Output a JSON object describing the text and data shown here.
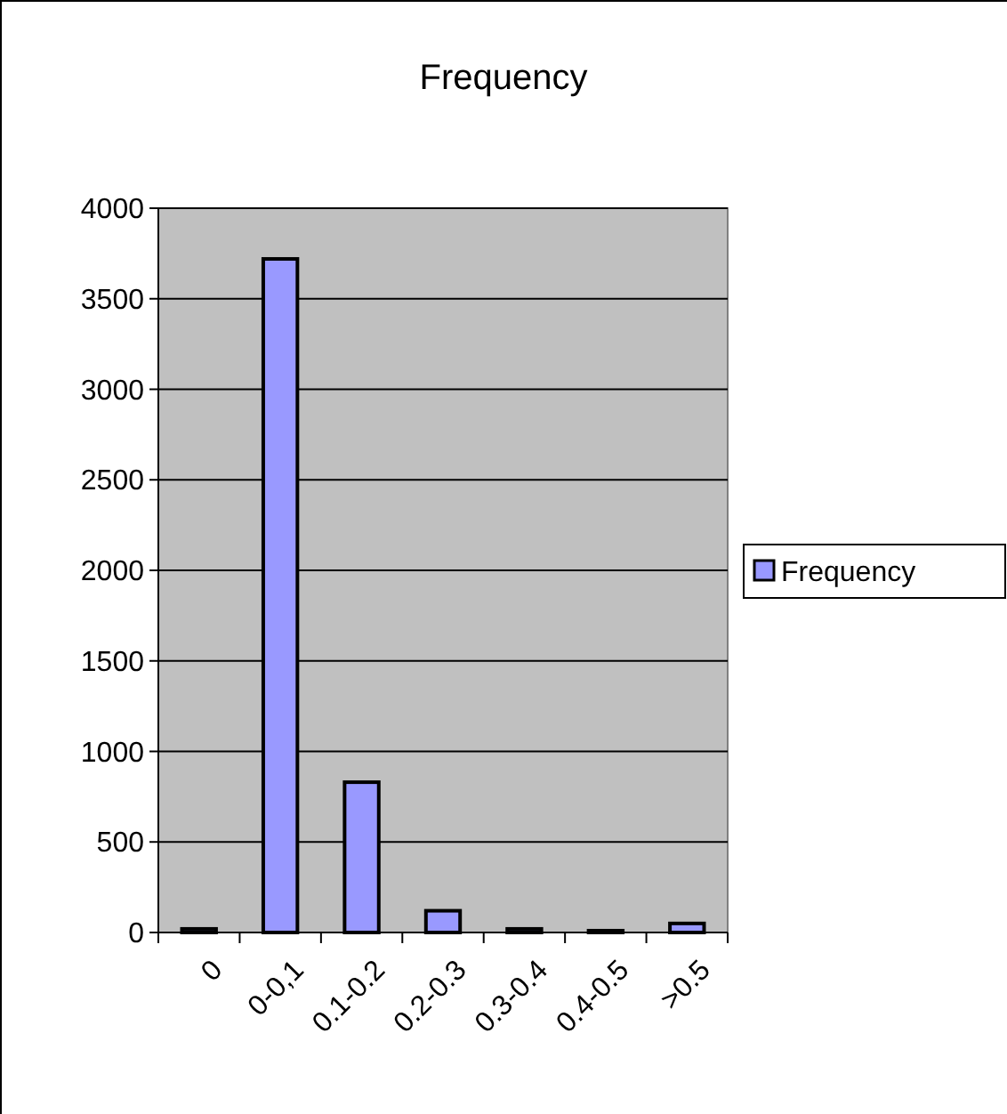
{
  "chart_data": {
    "type": "bar",
    "title": "Frequency",
    "categories": [
      "0",
      "0-0,1",
      "0.1-0.2",
      "0.2-0.3",
      "0.3-0.4",
      "0.4-0.5",
      ">0.5"
    ],
    "series": [
      {
        "name": "Frequency",
        "color": "#9999ff",
        "values": [
          20,
          3720,
          830,
          120,
          20,
          10,
          50
        ]
      }
    ],
    "ylim": [
      0,
      4000
    ],
    "yticks": [
      0,
      500,
      1000,
      1500,
      2000,
      2500,
      3000,
      3500,
      4000
    ],
    "grid": "y",
    "legend": "right"
  }
}
